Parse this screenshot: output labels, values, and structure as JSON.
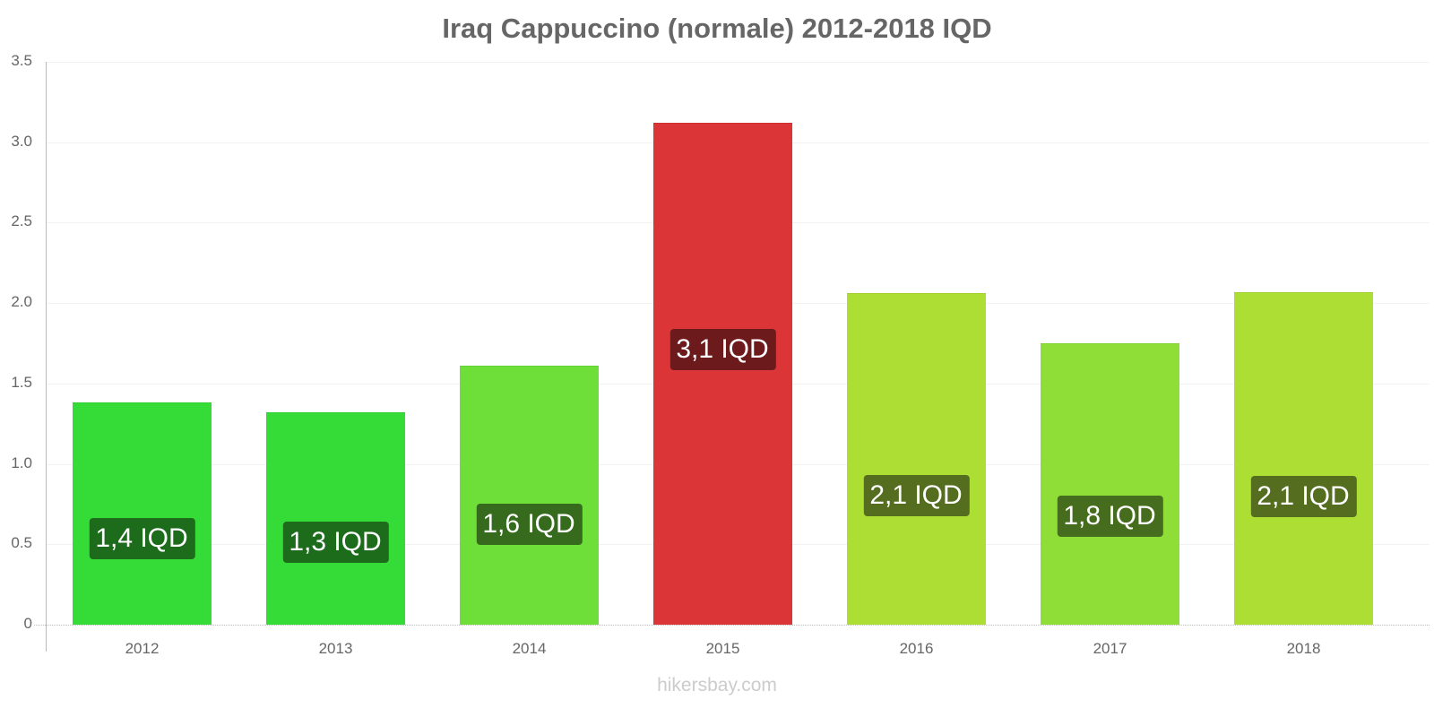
{
  "chart_data": {
    "type": "bar",
    "title": "Iraq Cappuccino (normale) 2012-2018 IQD",
    "xlabel": "",
    "ylabel": "",
    "ylim": [
      0,
      3.5
    ],
    "yticks": [
      "0",
      "0.5",
      "1.0",
      "1.5",
      "2.0",
      "2.5",
      "3.0",
      "3.5"
    ],
    "grid": true,
    "legend": null,
    "categories": [
      "2012",
      "2013",
      "2014",
      "2015",
      "2016",
      "2017",
      "2018"
    ],
    "values": [
      1.38,
      1.32,
      1.61,
      3.12,
      2.06,
      1.75,
      2.07
    ],
    "data_labels": [
      "1,4 IQD",
      "1,3 IQD",
      "1,6 IQD",
      "3,1 IQD",
      "2,1 IQD",
      "1,8 IQD",
      "2,1 IQD"
    ],
    "bar_colors": [
      "#35dc38",
      "#35dc38",
      "#6ddf38",
      "#db3537",
      "#acde34",
      "#8ede37",
      "#acde34"
    ],
    "label_colors": [
      "#1c6c1c",
      "#1c6c1c",
      "#366b1e",
      "#6c1a1b",
      "#546d1e",
      "#466d1e",
      "#546d1e"
    ]
  },
  "watermark": "hikersbay.com"
}
